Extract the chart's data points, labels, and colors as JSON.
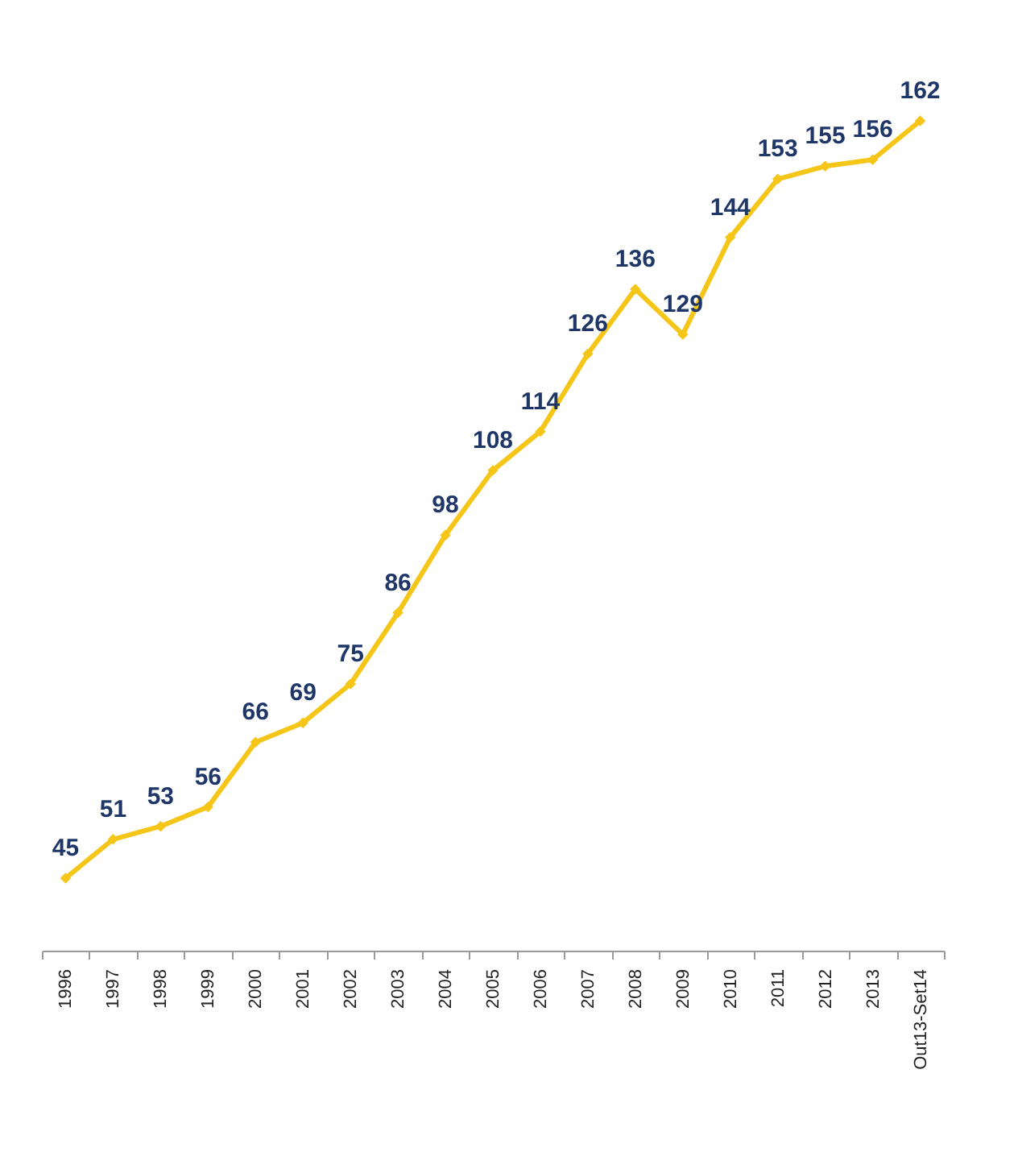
{
  "chart_data": {
    "type": "line",
    "categories": [
      "1996",
      "1997",
      "1998",
      "1999",
      "2000",
      "2001",
      "2002",
      "2003",
      "2004",
      "2005",
      "2006",
      "2007",
      "2008",
      "2009",
      "2010",
      "2011",
      "2012",
      "2013",
      "Out13-Set14"
    ],
    "series": [
      {
        "color": "#f5c518",
        "values": [
          45,
          51,
          53,
          56,
          66,
          69,
          75,
          86,
          98,
          108,
          114,
          126,
          136,
          129,
          144,
          153,
          155,
          156,
          162
        ]
      }
    ],
    "data_labels": true,
    "marker": "diamond",
    "grid": false,
    "tick_labels": "x"
  }
}
